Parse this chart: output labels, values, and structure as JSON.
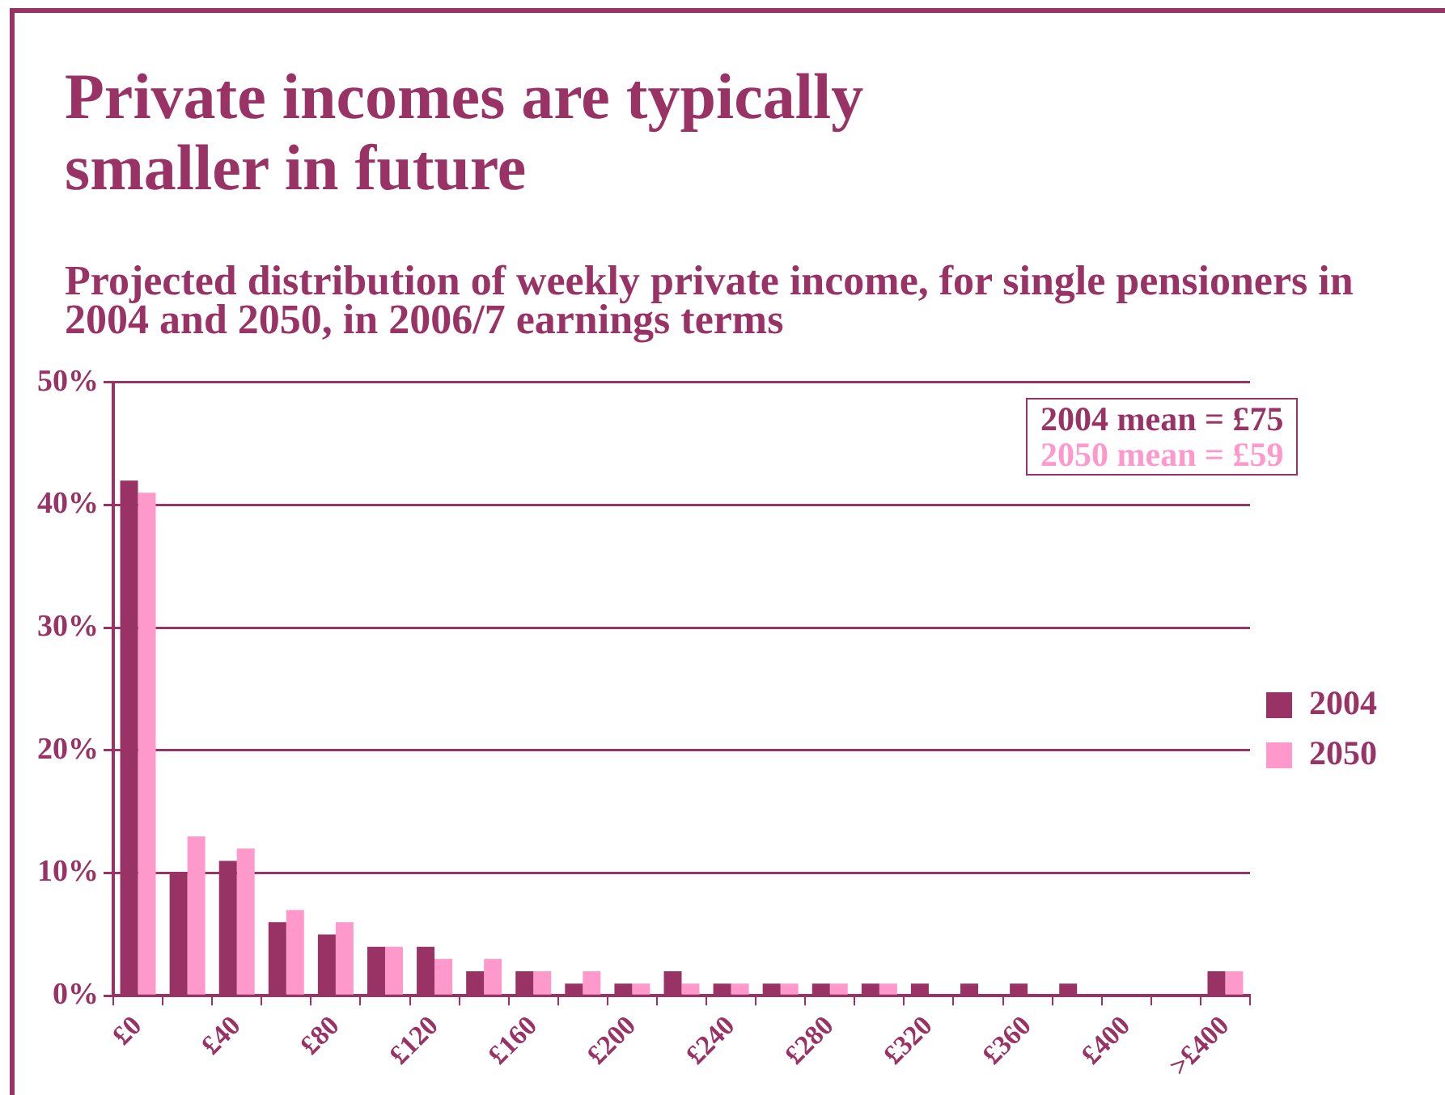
{
  "chart_data": {
    "type": "bar",
    "title": "Private incomes are typically smaller in future",
    "subtitle": "Projected distribution of weekly private income, for single pensioners in 2004 and 2050, in 2006/7 earnings terms",
    "categories": [
      "£0",
      null,
      "£40",
      null,
      "£80",
      null,
      "£120",
      null,
      "£160",
      null,
      "£200",
      null,
      "£240",
      null,
      "£280",
      null,
      "£320",
      null,
      "£360",
      null,
      "£400",
      null,
      ">£400"
    ],
    "series": [
      {
        "name": "2004",
        "color": "#993366",
        "values": [
          42,
          10,
          11,
          6,
          5,
          4,
          4,
          2,
          2,
          1,
          1,
          2,
          1,
          1,
          1,
          1,
          1,
          1,
          1,
          1,
          0,
          0,
          2
        ]
      },
      {
        "name": "2050",
        "color": "#ff99cc",
        "values": [
          41,
          13,
          12,
          7,
          6,
          4,
          3,
          3,
          2,
          2,
          1,
          1,
          1,
          1,
          1,
          1,
          0,
          0,
          0,
          0,
          0,
          0,
          2
        ]
      }
    ],
    "ylim": [
      0,
      50
    ],
    "yticks": [
      {
        "value": 0,
        "label": "0%"
      },
      {
        "value": 10,
        "label": "10%"
      },
      {
        "value": 20,
        "label": "20%"
      },
      {
        "value": 30,
        "label": "30%"
      },
      {
        "value": 40,
        "label": "40%"
      },
      {
        "value": 50,
        "label": "50%"
      }
    ],
    "grid": "y",
    "legend": "right",
    "annotations": [
      "2004 mean = £75",
      "2050 mean = £59"
    ]
  }
}
